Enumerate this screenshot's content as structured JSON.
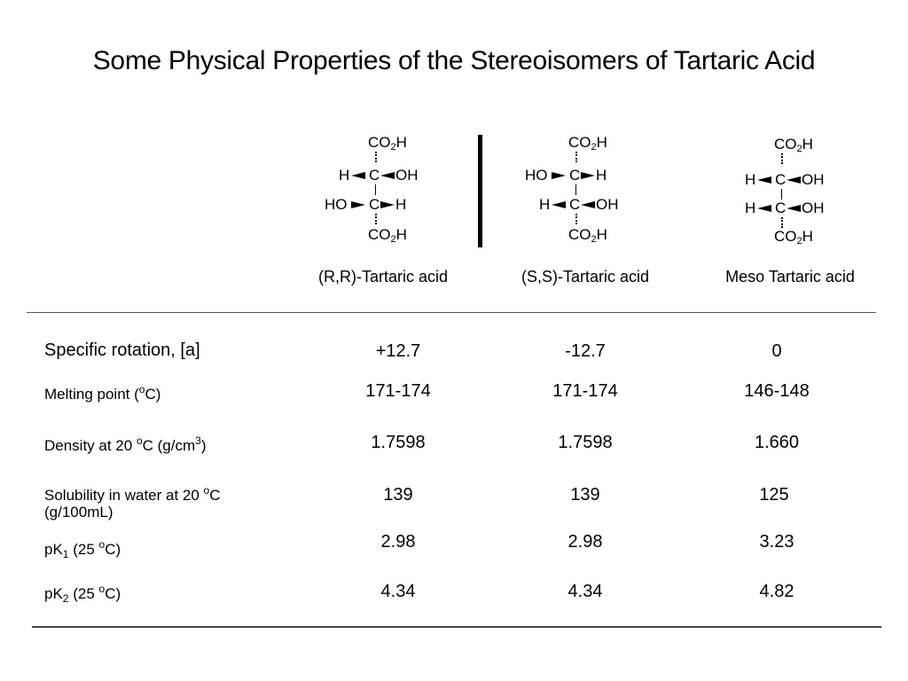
{
  "title": "Some Physical Properties of the Stereoisomers of Tartaric Acid",
  "structures": [
    {
      "name": "(R,R)-Tartaric acid",
      "top_group": "CO2H",
      "row1_left": "H",
      "row1_right": "OH",
      "row2_left": "HO",
      "row2_right": "H",
      "bottom_group": "CO2H"
    },
    {
      "name": "(S,S)-Tartaric acid",
      "top_group": "CO2H",
      "row1_left": "HO",
      "row1_right": "H",
      "row2_left": "H",
      "row2_right": "OH",
      "bottom_group": "CO2H"
    },
    {
      "name": "Meso Tartaric acid",
      "top_group": "CO2H",
      "row1_left": "H",
      "row1_right": "OH",
      "row2_left": "H",
      "row2_right": "OH",
      "bottom_group": "CO2H"
    }
  ],
  "table": {
    "rows": [
      {
        "label": "Specific rotation, [a]",
        "values": [
          "+12.7",
          "-12.7",
          "0"
        ]
      },
      {
        "label_pre": "Melting point (",
        "label_sup": "o",
        "label_post": "C)",
        "values": [
          "171-174",
          "171-174",
          "146-148"
        ]
      },
      {
        "label_pre": "Density at  20 ",
        "label_sup": "o",
        "label_mid": "C (g/cm",
        "label_sup2": "3",
        "label_post": ")",
        "values": [
          "1.7598",
          "1.7598",
          "1.660"
        ]
      },
      {
        "label_line1_pre": "Solubility in water at 20 ",
        "label_sup": "o",
        "label_line1_post": "C",
        "label_line2": "(g/100mL)",
        "values": [
          "139",
          "139",
          "125"
        ]
      },
      {
        "label_pre": "pK",
        "label_sub": "1",
        "label_mid": " (25 ",
        "label_sup": "o",
        "label_post": "C)",
        "values": [
          "2.98",
          "2.98",
          "3.23"
        ]
      },
      {
        "label_pre": "pK",
        "label_sub": "2",
        "label_mid": " (25 ",
        "label_sup": "o",
        "label_post": "C)",
        "values": [
          "4.34",
          "4.34",
          "4.82"
        ]
      }
    ]
  }
}
